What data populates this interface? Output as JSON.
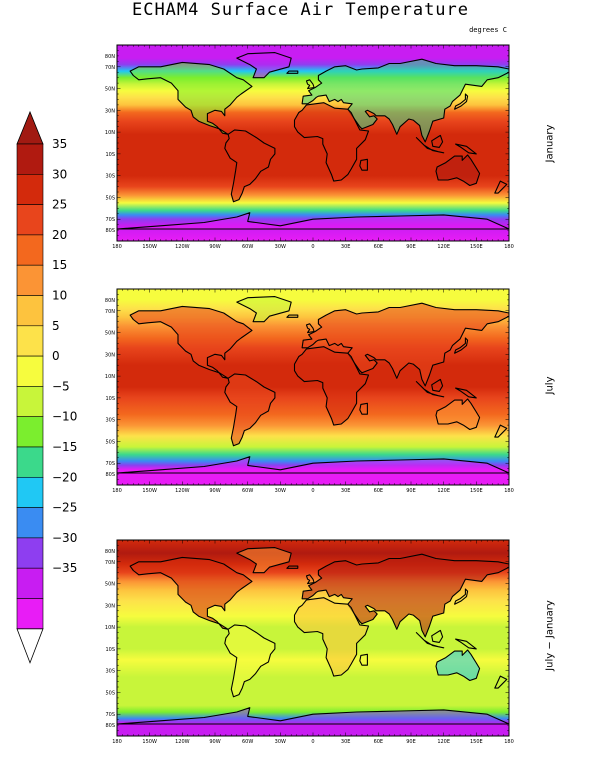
{
  "title": "ECHAM4 Surface Air Temperature",
  "units": "degrees C",
  "colorbar": {
    "labels": [
      "35",
      "30",
      "25",
      "20",
      "15",
      "10",
      "5",
      "0",
      "−5",
      "−10",
      "−15",
      "−20",
      "−25",
      "−30",
      "−35"
    ],
    "colors": [
      "#b01a10",
      "#d32a0c",
      "#e8451c",
      "#f3681e",
      "#fb9435",
      "#fdc33e",
      "#fde24a",
      "#f6fc3e",
      "#c8f53a",
      "#7bee2e",
      "#3bd98b",
      "#20c8f4",
      "#3a8cf2",
      "#8e3ef0",
      "#c81df2",
      "#e81cf6"
    ],
    "top_arrow_color": "#a11a12",
    "bottom_arrow_color": "#ffffff"
  },
  "panels": [
    {
      "label": "January",
      "field": "jan"
    },
    {
      "label": "July",
      "field": "jul"
    },
    {
      "label": "July − January",
      "field": "diff"
    }
  ],
  "lat_ticks": [
    "80N",
    "70N",
    "50N",
    "30N",
    "10N",
    "10S",
    "30S",
    "50S",
    "70S",
    "80S"
  ],
  "lon_ticks": [
    "180",
    "150W",
    "120W",
    "90W",
    "60W",
    "30W",
    "0",
    "30E",
    "60E",
    "90E",
    "120E",
    "150E",
    "180"
  ]
}
